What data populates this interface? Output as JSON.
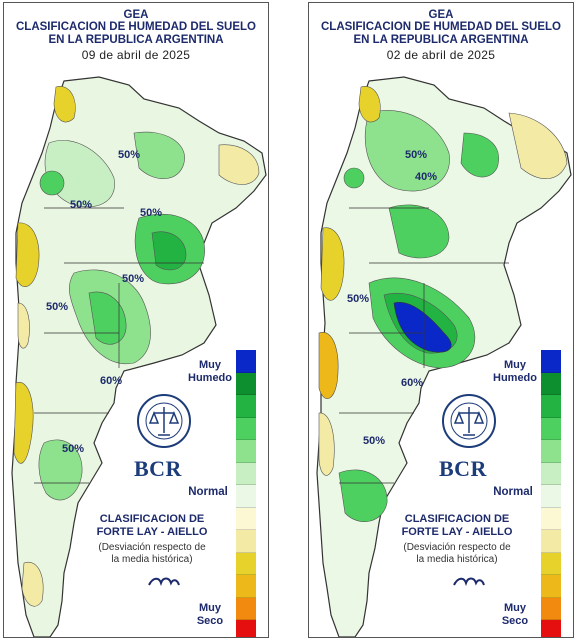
{
  "title_line1": "GEA",
  "title_line2": "CLASIFICACION DE HUMEDAD DEL SUELO",
  "title_line3": "EN LA REPUBLICA ARGENTINA",
  "maps": [
    {
      "date": "09 de abril de 2025",
      "contour_labels": [
        "50%",
        "50%",
        "50%",
        "50%",
        "50%",
        "60%",
        "50%"
      ]
    },
    {
      "date": "02 de abril de 2025",
      "contour_labels": [
        "50%",
        "40%",
        "50%",
        "60%",
        "50%"
      ]
    }
  ],
  "legend": {
    "top_label_1": "Muy",
    "top_label_2": "Humedo",
    "mid_label": "Normal",
    "bottom_label_1": "Muy",
    "bottom_label_2": "Seco",
    "colors": [
      "#0a28c8",
      "#0d8f30",
      "#23b343",
      "#4ed060",
      "#8ee28e",
      "#c8efc3",
      "#ecf8e6",
      "#fdf8d4",
      "#f3eaa6",
      "#e7d22c",
      "#ecb81a",
      "#f28a10",
      "#e60f0f"
    ]
  },
  "brand": {
    "name": "BCR",
    "seal_icon": "bolsa-de-comercio-seal-icon"
  },
  "method": {
    "line1": "CLASIFICACION DE",
    "line2": "FORTE LAY - AIELLO",
    "line3": "(Desviación respecto de",
    "line4": "la media histórica)"
  }
}
